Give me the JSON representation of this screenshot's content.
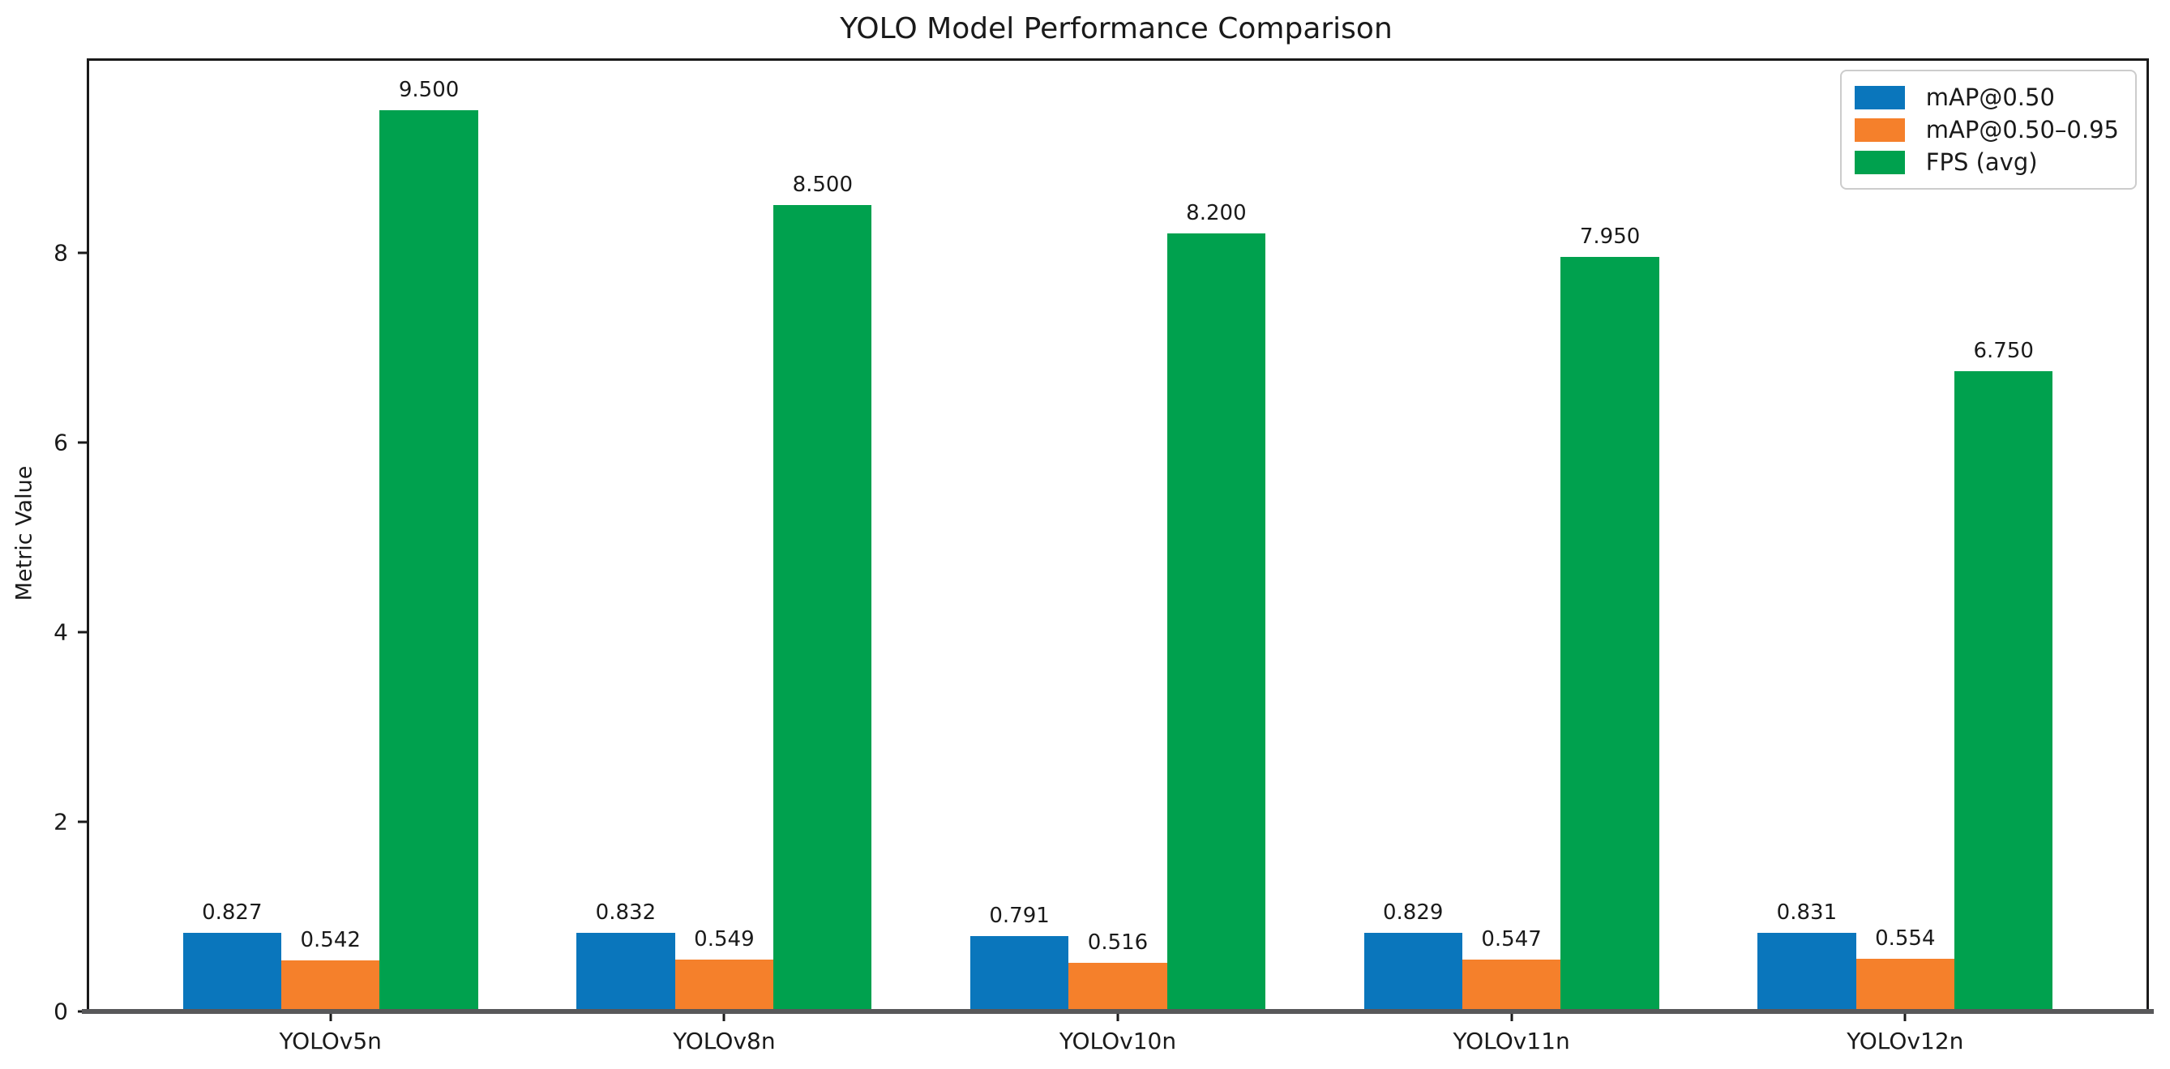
{
  "chart_data": {
    "type": "bar",
    "title": "YOLO Model Performance Comparison",
    "xlabel": "",
    "ylabel": "Metric Value",
    "categories": [
      "YOLOv5n",
      "YOLOv8n",
      "YOLOv10n",
      "YOLOv11n",
      "YOLOv12n"
    ],
    "series": [
      {
        "name": "mAP@0.50",
        "color": "#0a76bc",
        "values": [
          0.827,
          0.832,
          0.791,
          0.829,
          0.831
        ]
      },
      {
        "name": "mAP@0.50–0.95",
        "color": "#f5802b",
        "values": [
          0.542,
          0.549,
          0.516,
          0.547,
          0.554
        ]
      },
      {
        "name": "FPS (avg)",
        "color": "#00a14e",
        "values": [
          9.5,
          8.5,
          8.2,
          7.95,
          6.75
        ]
      }
    ],
    "value_labels": [
      [
        "0.827",
        "0.832",
        "0.791",
        "0.829",
        "0.831"
      ],
      [
        "0.542",
        "0.549",
        "0.516",
        "0.547",
        "0.554"
      ],
      [
        "9.500",
        "8.500",
        "8.200",
        "7.950",
        "6.750"
      ]
    ],
    "yticks": [
      0,
      2,
      4,
      6,
      8
    ],
    "ylim": [
      0,
      10.02
    ],
    "xlim": [
      -0.613,
      4.613
    ],
    "bar_width_units": 0.25,
    "grid": false,
    "legend_position": "upper right",
    "value_label_decimals": 3
  }
}
